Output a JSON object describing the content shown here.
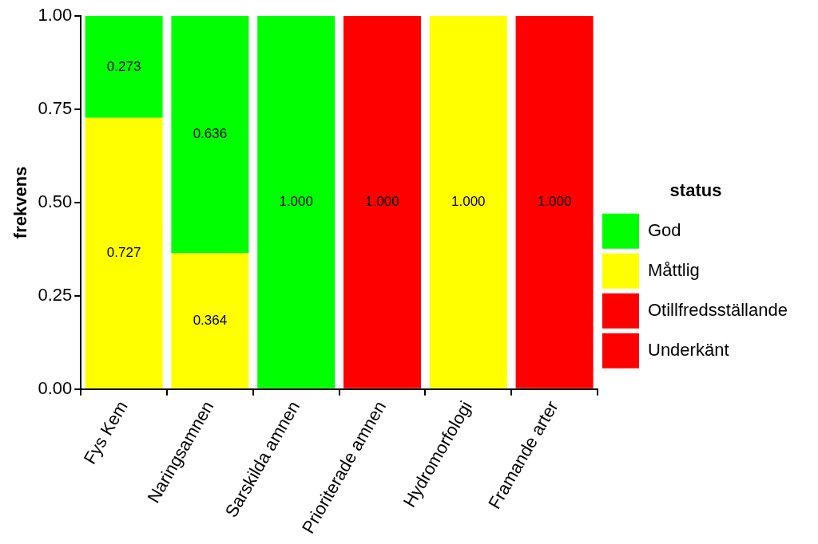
{
  "chart_data": {
    "type": "bar",
    "stacked": true,
    "ylabel": "frekvens",
    "legend_title": "status",
    "legend": "right",
    "grid": false,
    "data_labels": true,
    "categories": [
      "Fys Kem",
      "Naringsamnen",
      "Sarskilda amnen",
      "Prioriterade amnen",
      "Hydromorfologi",
      "Framande arter"
    ],
    "series": [
      {
        "name": "God",
        "color": "#00ff00",
        "values": [
          0.273,
          0.636,
          1.0,
          null,
          null,
          null
        ],
        "value_labels": [
          "0.273",
          "0.636",
          "1.000",
          null,
          null,
          null
        ]
      },
      {
        "name": "Måttlig",
        "color": "#ffff00",
        "values": [
          0.727,
          0.364,
          null,
          null,
          1.0,
          null
        ],
        "value_labels": [
          "0.727",
          "0.364",
          null,
          null,
          "1.000",
          null
        ]
      },
      {
        "name": "Otillfredsställande",
        "color": "#ff0000",
        "values": [
          null,
          null,
          null,
          null,
          null,
          1.0
        ],
        "value_labels": [
          null,
          null,
          null,
          null,
          null,
          "1.000"
        ]
      },
      {
        "name": "Underkänt",
        "color": "#ff0000",
        "values": [
          null,
          null,
          null,
          1.0,
          null,
          null
        ],
        "value_labels": [
          null,
          null,
          null,
          "1.000",
          null,
          null
        ]
      }
    ],
    "ylim": [
      0,
      1
    ],
    "yticks": [
      {
        "value": 0,
        "label": "0.00"
      },
      {
        "value": 0.25,
        "label": "0.25"
      },
      {
        "value": 0.5,
        "label": "0.50"
      },
      {
        "value": 0.75,
        "label": "0.75"
      },
      {
        "value": 1,
        "label": "1.00"
      }
    ]
  }
}
